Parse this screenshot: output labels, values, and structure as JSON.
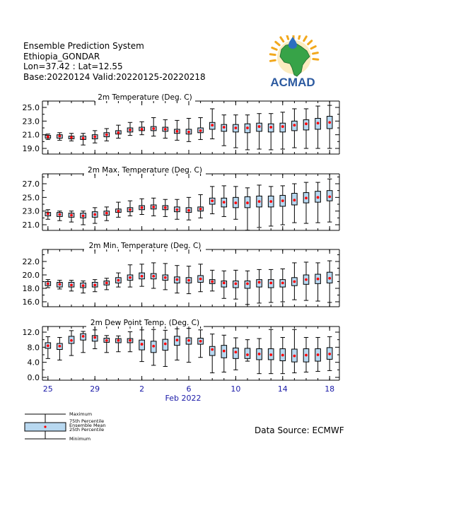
{
  "header": {
    "line1": "Ensemble Prediction System",
    "line2": "Ethiopia_GONDAR",
    "line3": "Lon=37.42 : Lat=12.55",
    "line4": "Base:20220124 Valid:20220125-20220218"
  },
  "logo": {
    "text": "ACMAD",
    "icon": "africa-map-sun-icon"
  },
  "colors": {
    "box": "#b8d8f0",
    "mean": "#ff0000",
    "axis": "#000000",
    "xlabels": "#1a1aa8"
  },
  "source": "Data Source: ECMWF",
  "legend": {
    "maximum": "Maximum",
    "p75": "75th Percentile",
    "mean": "Ensemble Mean",
    "p25": "25th Percentile",
    "minimum": "Minimum"
  },
  "chart_data": [
    {
      "type": "boxplot",
      "title": "2m Temperature (Deg. C)",
      "ylim": [
        19.0,
        26.0
      ],
      "yticks": [
        "25.0",
        "23.0",
        "21.0",
        "19.0"
      ],
      "x": [
        "2022-01-25",
        "2022-01-26",
        "2022-01-27",
        "2022-01-28",
        "2022-01-29",
        "2022-01-30",
        "2022-01-31",
        "2022-02-01",
        "2022-02-02",
        "2022-02-03",
        "2022-02-04",
        "2022-02-05",
        "2022-02-06",
        "2022-02-07",
        "2022-02-08",
        "2022-02-09",
        "2022-02-10",
        "2022-02-11",
        "2022-02-12",
        "2022-02-13",
        "2022-02-14",
        "2022-02-15",
        "2022-02-16",
        "2022-02-17",
        "2022-02-18"
      ],
      "min": [
        20.3,
        20.2,
        20.1,
        19.5,
        19.8,
        20.1,
        20.5,
        20.9,
        21.0,
        20.8,
        20.5,
        20.2,
        20.0,
        20.3,
        20.4,
        19.4,
        19.1,
        18.8,
        18.9,
        18.8,
        18.9,
        19.1,
        19.0,
        19.0,
        19.0
      ],
      "q25": [
        20.5,
        20.5,
        20.4,
        20.3,
        20.4,
        20.7,
        21.1,
        21.4,
        21.6,
        21.6,
        21.5,
        21.2,
        21.1,
        21.3,
        21.8,
        21.5,
        21.4,
        21.3,
        21.5,
        21.4,
        21.4,
        21.6,
        21.7,
        21.8,
        21.9
      ],
      "mean": [
        20.7,
        20.8,
        20.6,
        20.5,
        20.7,
        21.0,
        21.3,
        21.7,
        21.8,
        21.9,
        21.8,
        21.5,
        21.4,
        21.6,
        22.4,
        22.1,
        22.0,
        22.0,
        22.2,
        22.1,
        22.2,
        22.4,
        22.6,
        22.7,
        22.8
      ],
      "q75": [
        20.9,
        21.0,
        20.8,
        20.8,
        21.0,
        21.3,
        21.6,
        22.0,
        22.1,
        22.2,
        22.1,
        21.8,
        21.8,
        22.0,
        22.8,
        22.5,
        22.5,
        22.6,
        22.7,
        22.6,
        22.7,
        23.0,
        23.2,
        23.4,
        23.7
      ],
      "max": [
        21.1,
        21.3,
        21.2,
        21.2,
        21.6,
        21.9,
        22.4,
        22.8,
        22.9,
        23.5,
        23.2,
        23.1,
        23.4,
        23.5,
        24.8,
        23.9,
        23.9,
        23.9,
        24.1,
        24.1,
        24.3,
        24.8,
        24.8,
        25.2,
        25.3
      ]
    },
    {
      "type": "boxplot",
      "title": "2m Max. Temperature (Deg. C)",
      "ylim": [
        21.0,
        28.0
      ],
      "yticks": [
        "27.0",
        "25.0",
        "23.0",
        "21.0"
      ],
      "x": [
        "2022-01-25",
        "2022-01-26",
        "2022-01-27",
        "2022-01-28",
        "2022-01-29",
        "2022-01-30",
        "2022-01-31",
        "2022-02-01",
        "2022-02-02",
        "2022-02-03",
        "2022-02-04",
        "2022-02-05",
        "2022-02-06",
        "2022-02-07",
        "2022-02-08",
        "2022-02-09",
        "2022-02-10",
        "2022-02-11",
        "2022-02-12",
        "2022-02-13",
        "2022-02-14",
        "2022-02-15",
        "2022-02-16",
        "2022-02-17",
        "2022-02-18"
      ],
      "min": [
        21.8,
        21.6,
        21.4,
        21.0,
        21.2,
        21.6,
        22.1,
        22.3,
        22.5,
        22.3,
        22.2,
        21.8,
        21.7,
        22.0,
        22.6,
        22.2,
        21.8,
        20.2,
        20.6,
        20.8,
        21.0,
        21.3,
        21.2,
        21.3,
        21.4
      ],
      "q25": [
        22.3,
        22.2,
        22.1,
        22.0,
        22.1,
        22.4,
        22.8,
        22.9,
        23.2,
        23.3,
        23.2,
        22.9,
        22.8,
        23.0,
        24.0,
        23.6,
        23.5,
        23.5,
        23.6,
        23.6,
        23.7,
        23.9,
        24.2,
        24.3,
        24.5
      ],
      "mean": [
        22.6,
        22.5,
        22.4,
        22.3,
        22.5,
        22.7,
        23.0,
        23.2,
        23.5,
        23.6,
        23.5,
        23.2,
        23.1,
        23.3,
        24.5,
        24.3,
        24.2,
        24.2,
        24.4,
        24.4,
        24.5,
        24.6,
        24.9,
        25.0,
        25.1
      ],
      "q75": [
        22.8,
        22.8,
        22.7,
        22.7,
        22.9,
        23.0,
        23.3,
        23.5,
        23.8,
        23.9,
        23.8,
        23.6,
        23.5,
        23.6,
        24.9,
        24.9,
        25.0,
        25.1,
        25.2,
        25.2,
        25.3,
        25.6,
        25.7,
        25.9,
        26.0
      ],
      "max": [
        23.2,
        23.0,
        23.0,
        23.0,
        23.5,
        23.6,
        24.3,
        24.5,
        24.8,
        24.9,
        24.7,
        24.7,
        25.0,
        25.4,
        26.6,
        26.7,
        26.6,
        26.4,
        26.8,
        26.6,
        26.7,
        27.0,
        27.2,
        27.2,
        27.7
      ]
    },
    {
      "type": "boxplot",
      "title": "2m Min. Temperature (Deg. C)",
      "ylim": [
        16.0,
        23.0
      ],
      "yticks": [
        "22.0",
        "20.0",
        "18.0",
        "16.0"
      ],
      "x": [
        "2022-01-25",
        "2022-01-26",
        "2022-01-27",
        "2022-01-28",
        "2022-01-29",
        "2022-01-30",
        "2022-01-31",
        "2022-02-01",
        "2022-02-02",
        "2022-02-03",
        "2022-02-04",
        "2022-02-05",
        "2022-02-06",
        "2022-02-07",
        "2022-02-08",
        "2022-02-09",
        "2022-02-10",
        "2022-02-11",
        "2022-02-12",
        "2022-02-13",
        "2022-02-14",
        "2022-02-15",
        "2022-02-16",
        "2022-02-17",
        "2022-02-18"
      ],
      "min": [
        18.1,
        17.9,
        17.6,
        17.3,
        17.5,
        17.8,
        18.2,
        18.2,
        18.3,
        18.0,
        17.8,
        17.3,
        17.2,
        17.5,
        17.6,
        16.5,
        16.4,
        15.6,
        15.8,
        15.9,
        16.0,
        16.3,
        16.2,
        16.1,
        15.9
      ],
      "q25": [
        18.4,
        18.2,
        18.2,
        18.1,
        18.2,
        18.5,
        18.8,
        19.2,
        19.4,
        19.4,
        19.2,
        18.8,
        18.8,
        18.9,
        18.7,
        18.2,
        18.1,
        18.0,
        18.2,
        18.1,
        18.2,
        18.4,
        18.6,
        18.7,
        18.8
      ],
      "mean": [
        18.7,
        18.6,
        18.5,
        18.4,
        18.5,
        18.8,
        19.2,
        19.6,
        19.8,
        19.8,
        19.6,
        19.3,
        19.2,
        19.4,
        19.0,
        18.8,
        18.7,
        18.7,
        18.9,
        18.8,
        18.8,
        19.0,
        19.3,
        19.4,
        19.5
      ],
      "q75": [
        19.0,
        18.9,
        18.9,
        18.8,
        18.9,
        19.1,
        19.6,
        20.0,
        20.3,
        20.2,
        20.0,
        19.7,
        19.6,
        19.9,
        19.3,
        19.1,
        19.1,
        19.1,
        19.3,
        19.3,
        19.3,
        19.6,
        20.0,
        20.1,
        20.4
      ],
      "max": [
        19.3,
        19.2,
        19.2,
        19.1,
        19.3,
        19.5,
        20.3,
        21.5,
        21.6,
        21.8,
        21.7,
        21.4,
        21.3,
        21.6,
        20.7,
        20.6,
        20.7,
        20.6,
        20.8,
        20.8,
        20.9,
        21.8,
        21.9,
        21.8,
        22.1
      ]
    },
    {
      "type": "boxplot",
      "title": "2m Dew Point Temp. (Deg. C)",
      "ylim": [
        0.0,
        13.0
      ],
      "yticks": [
        "12.0",
        "8.0",
        "4.0",
        "0.0"
      ],
      "x": [
        "2022-01-25",
        "2022-01-26",
        "2022-01-27",
        "2022-01-28",
        "2022-01-29",
        "2022-01-30",
        "2022-01-31",
        "2022-02-01",
        "2022-02-02",
        "2022-02-03",
        "2022-02-04",
        "2022-02-05",
        "2022-02-06",
        "2022-02-07",
        "2022-02-08",
        "2022-02-09",
        "2022-02-10",
        "2022-02-11",
        "2022-02-12",
        "2022-02-13",
        "2022-02-14",
        "2022-02-15",
        "2022-02-16",
        "2022-02-17",
        "2022-02-18"
      ],
      "min": [
        5.0,
        4.6,
        5.8,
        6.6,
        7.6,
        6.6,
        6.8,
        6.8,
        4.2,
        3.2,
        2.9,
        4.6,
        4.0,
        5.3,
        1.2,
        1.4,
        2.0,
        4.3,
        1.0,
        1.0,
        1.0,
        1.2,
        1.4,
        1.6,
        1.8
      ],
      "q25": [
        7.7,
        7.4,
        9.0,
        9.9,
        9.6,
        9.3,
        9.2,
        9.2,
        7.3,
        6.6,
        7.2,
        8.5,
        8.8,
        8.8,
        5.8,
        5.2,
        5.0,
        5.0,
        4.7,
        4.7,
        4.4,
        4.1,
        4.1,
        4.3,
        4.8
      ],
      "mean": [
        8.4,
        8.3,
        9.8,
        10.9,
        10.6,
        9.8,
        9.8,
        9.8,
        8.8,
        8.3,
        8.9,
        9.9,
        9.8,
        9.6,
        7.4,
        7.0,
        6.7,
        6.0,
        6.2,
        6.0,
        5.9,
        5.7,
        5.9,
        6.0,
        6.2
      ],
      "q75": [
        9.2,
        9.0,
        10.9,
        11.6,
        11.1,
        10.4,
        10.3,
        10.3,
        9.9,
        9.6,
        10.1,
        10.9,
        10.5,
        10.4,
        8.2,
        8.5,
        7.8,
        7.7,
        7.6,
        7.6,
        7.6,
        7.5,
        7.6,
        7.6,
        7.9
      ],
      "max": [
        10.8,
        10.6,
        12.4,
        12.2,
        12.6,
        11.1,
        11.0,
        12.1,
        12.6,
        12.7,
        12.5,
        12.9,
        13.0,
        12.6,
        11.5,
        11.2,
        10.5,
        10.0,
        10.3,
        12.7,
        10.6,
        12.7,
        10.6,
        10.6,
        10.8
      ]
    }
  ],
  "xaxis": {
    "ticks": [
      {
        "label": "25",
        "index": 0
      },
      {
        "label": "29",
        "index": 4
      },
      {
        "label": "2",
        "index": 8
      },
      {
        "label": "6",
        "index": 12
      },
      {
        "label": "10",
        "index": 16
      },
      {
        "label": "14",
        "index": 20
      },
      {
        "label": "18",
        "index": 24
      }
    ],
    "month": "Feb 2022"
  }
}
